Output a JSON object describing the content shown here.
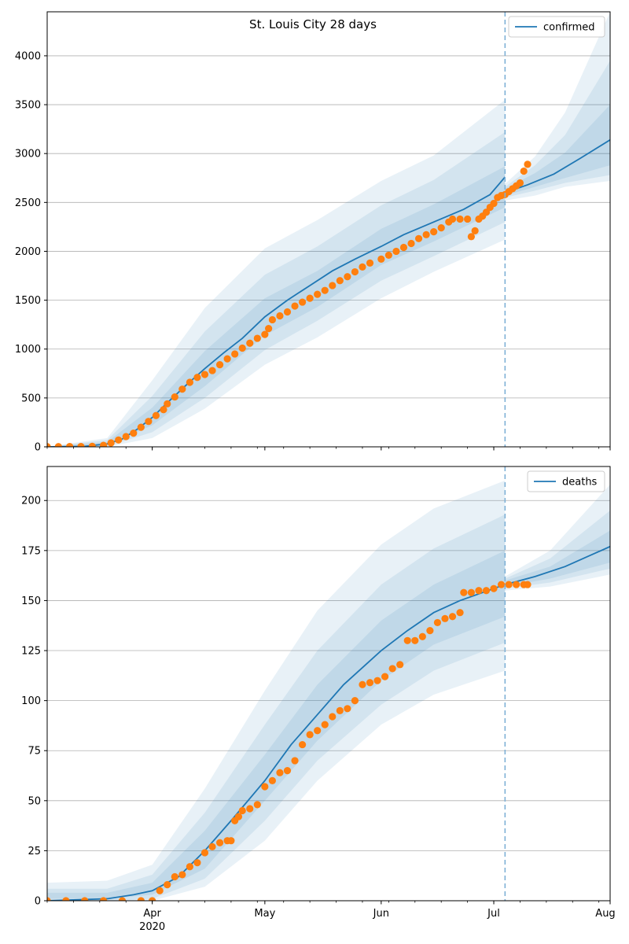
{
  "chart_data": [
    {
      "type": "line",
      "title": "St. Louis City 28 days",
      "legend": "confirmed",
      "legend_position": "top-right",
      "grid": "y",
      "ylim": [
        0,
        4450
      ],
      "yticks": [
        0,
        500,
        1000,
        1500,
        2000,
        2500,
        3000,
        3500,
        4000
      ],
      "xlim": [
        "2020-03-04",
        "2020-08-01"
      ],
      "xticks": [
        {
          "date": "2020-04-01",
          "label": "Apr"
        },
        {
          "date": "2020-05-01",
          "label": "May"
        },
        {
          "date": "2020-06-01",
          "label": "Jun"
        },
        {
          "date": "2020-07-01",
          "label": "Jul"
        },
        {
          "date": "2020-08-01",
          "label": "Aug"
        }
      ],
      "year_label": "2020",
      "forecast_start": "2020-07-04",
      "model": [
        [
          "2020-03-04",
          0
        ],
        [
          "2020-03-14",
          5
        ],
        [
          "2020-03-20",
          30
        ],
        [
          "2020-03-24",
          80
        ],
        [
          "2020-03-28",
          180
        ],
        [
          "2020-04-01",
          300
        ],
        [
          "2020-04-05",
          450
        ],
        [
          "2020-04-10",
          630
        ],
        [
          "2020-04-15",
          800
        ],
        [
          "2020-04-20",
          960
        ],
        [
          "2020-04-25",
          1110
        ],
        [
          "2020-05-01",
          1330
        ],
        [
          "2020-05-07",
          1500
        ],
        [
          "2020-05-13",
          1650
        ],
        [
          "2020-05-19",
          1800
        ],
        [
          "2020-05-25",
          1920
        ],
        [
          "2020-06-01",
          2050
        ],
        [
          "2020-06-07",
          2170
        ],
        [
          "2020-06-15",
          2300
        ],
        [
          "2020-06-23",
          2430
        ],
        [
          "2020-06-30",
          2580
        ],
        [
          "2020-07-04",
          2760
        ]
      ],
      "forecast": [
        [
          "2020-07-04",
          2600
        ],
        [
          "2020-07-10",
          2680
        ],
        [
          "2020-07-17",
          2790
        ],
        [
          "2020-07-24",
          2950
        ],
        [
          "2020-08-01",
          3140
        ]
      ],
      "observed": [
        [
          "2020-03-04",
          2
        ],
        [
          "2020-03-07",
          2
        ],
        [
          "2020-03-10",
          3
        ],
        [
          "2020-03-13",
          3
        ],
        [
          "2020-03-16",
          5
        ],
        [
          "2020-03-19",
          15
        ],
        [
          "2020-03-21",
          40
        ],
        [
          "2020-03-23",
          70
        ],
        [
          "2020-03-25",
          105
        ],
        [
          "2020-03-27",
          140
        ],
        [
          "2020-03-29",
          200
        ],
        [
          "2020-03-31",
          260
        ],
        [
          "2020-04-02",
          320
        ],
        [
          "2020-04-04",
          380
        ],
        [
          "2020-04-05",
          440
        ],
        [
          "2020-04-07",
          510
        ],
        [
          "2020-04-09",
          590
        ],
        [
          "2020-04-11",
          660
        ],
        [
          "2020-04-13",
          710
        ],
        [
          "2020-04-15",
          740
        ],
        [
          "2020-04-17",
          780
        ],
        [
          "2020-04-19",
          840
        ],
        [
          "2020-04-21",
          900
        ],
        [
          "2020-04-23",
          950
        ],
        [
          "2020-04-25",
          1010
        ],
        [
          "2020-04-27",
          1060
        ],
        [
          "2020-04-29",
          1110
        ],
        [
          "2020-05-01",
          1150
        ],
        [
          "2020-05-02",
          1210
        ],
        [
          "2020-05-03",
          1300
        ],
        [
          "2020-05-05",
          1340
        ],
        [
          "2020-05-07",
          1380
        ],
        [
          "2020-05-09",
          1440
        ],
        [
          "2020-05-11",
          1480
        ],
        [
          "2020-05-13",
          1520
        ],
        [
          "2020-05-15",
          1560
        ],
        [
          "2020-05-17",
          1600
        ],
        [
          "2020-05-19",
          1650
        ],
        [
          "2020-05-21",
          1700
        ],
        [
          "2020-05-23",
          1740
        ],
        [
          "2020-05-25",
          1790
        ],
        [
          "2020-05-27",
          1840
        ],
        [
          "2020-05-29",
          1880
        ],
        [
          "2020-06-01",
          1920
        ],
        [
          "2020-06-03",
          1960
        ],
        [
          "2020-06-05",
          2000
        ],
        [
          "2020-06-07",
          2040
        ],
        [
          "2020-06-09",
          2080
        ],
        [
          "2020-06-11",
          2130
        ],
        [
          "2020-06-13",
          2170
        ],
        [
          "2020-06-15",
          2200
        ],
        [
          "2020-06-17",
          2240
        ],
        [
          "2020-06-19",
          2300
        ],
        [
          "2020-06-20",
          2330
        ],
        [
          "2020-06-22",
          2330
        ],
        [
          "2020-06-24",
          2330
        ],
        [
          "2020-06-25",
          2150
        ],
        [
          "2020-06-26",
          2210
        ],
        [
          "2020-06-27",
          2330
        ],
        [
          "2020-06-28",
          2360
        ],
        [
          "2020-06-29",
          2400
        ],
        [
          "2020-06-30",
          2450
        ],
        [
          "2020-07-01",
          2490
        ],
        [
          "2020-07-02",
          2550
        ],
        [
          "2020-07-03",
          2570
        ],
        [
          "2020-07-04",
          2580
        ],
        [
          "2020-07-05",
          2610
        ],
        [
          "2020-07-06",
          2640
        ],
        [
          "2020-07-07",
          2670
        ],
        [
          "2020-07-08",
          2700
        ],
        [
          "2020-07-09",
          2820
        ],
        [
          "2020-07-10",
          2890
        ]
      ],
      "bands": {
        "history": [
          [
            "2020-03-04",
            [
              0,
              0
            ],
            [
              0,
              0
            ],
            [
              0,
              0
            ]
          ],
          [
            "2020-03-20",
            [
              15,
              50
            ],
            [
              5,
              70
            ],
            [
              0,
              90
            ]
          ],
          [
            "2020-04-01",
            [
              220,
              400
            ],
            [
              150,
              520
            ],
            [
              90,
              680
            ]
          ],
          [
            "2020-04-15",
            [
              620,
              980
            ],
            [
              500,
              1180
            ],
            [
              390,
              1420
            ]
          ],
          [
            "2020-05-01",
            [
              1140,
              1520
            ],
            [
              990,
              1760
            ],
            [
              840,
              2030
            ]
          ],
          [
            "2020-05-15",
            [
              1430,
              1800
            ],
            [
              1290,
              2050
            ],
            [
              1120,
              2320
            ]
          ],
          [
            "2020-06-01",
            [
              1860,
              2230
            ],
            [
              1700,
              2470
            ],
            [
              1520,
              2720
            ]
          ],
          [
            "2020-06-15",
            [
              2100,
              2480
            ],
            [
              1950,
              2730
            ],
            [
              1790,
              2980
            ]
          ],
          [
            "2020-07-04",
            [
              2450,
              2870
            ],
            [
              2300,
              3220
            ],
            [
              2120,
              3550
            ]
          ]
        ],
        "forecast": [
          [
            "2020-07-04",
            [
              2570,
              2640
            ],
            [
              2550,
              2660
            ],
            [
              2520,
              2690
            ]
          ],
          [
            "2020-07-12",
            [
              2660,
              2800
            ],
            [
              2620,
              2880
            ],
            [
              2570,
              2970
            ]
          ],
          [
            "2020-07-20",
            [
              2750,
              3010
            ],
            [
              2700,
              3190
            ],
            [
              2660,
              3420
            ]
          ],
          [
            "2020-08-01",
            [
              2880,
              3500
            ],
            [
              2780,
              3950
            ],
            [
              2720,
              4450
            ]
          ]
        ]
      }
    },
    {
      "type": "line",
      "legend": "deaths",
      "legend_position": "top-right",
      "grid": "y",
      "ylim": [
        0,
        217
      ],
      "yticks": [
        0,
        25,
        50,
        75,
        100,
        125,
        150,
        175,
        200
      ],
      "xlim": [
        "2020-03-04",
        "2020-08-01"
      ],
      "xticks": [
        {
          "date": "2020-04-01",
          "label": "Apr"
        },
        {
          "date": "2020-05-01",
          "label": "May"
        },
        {
          "date": "2020-06-01",
          "label": "Jun"
        },
        {
          "date": "2020-07-01",
          "label": "Jul"
        },
        {
          "date": "2020-08-01",
          "label": "Aug"
        }
      ],
      "year_label": "2020",
      "forecast_start": "2020-07-04",
      "model": [
        [
          "2020-03-04",
          0
        ],
        [
          "2020-03-20",
          1
        ],
        [
          "2020-03-27",
          3
        ],
        [
          "2020-04-01",
          5
        ],
        [
          "2020-04-08",
          12
        ],
        [
          "2020-04-15",
          25
        ],
        [
          "2020-04-22",
          40
        ],
        [
          "2020-05-01",
          60
        ],
        [
          "2020-05-08",
          78
        ],
        [
          "2020-05-15",
          93
        ],
        [
          "2020-05-22",
          108
        ],
        [
          "2020-06-01",
          125
        ],
        [
          "2020-06-08",
          135
        ],
        [
          "2020-06-15",
          144
        ],
        [
          "2020-06-22",
          150
        ],
        [
          "2020-07-04",
          158
        ]
      ],
      "forecast": [
        [
          "2020-07-04",
          158
        ],
        [
          "2020-07-12",
          162
        ],
        [
          "2020-07-20",
          167
        ],
        [
          "2020-07-26",
          172
        ],
        [
          "2020-08-01",
          177
        ]
      ],
      "observed": [
        [
          "2020-03-04",
          0
        ],
        [
          "2020-03-09",
          0
        ],
        [
          "2020-03-14",
          0
        ],
        [
          "2020-03-19",
          0
        ],
        [
          "2020-03-24",
          0
        ],
        [
          "2020-03-29",
          0
        ],
        [
          "2020-04-01",
          0
        ],
        [
          "2020-04-03",
          5
        ],
        [
          "2020-04-05",
          8
        ],
        [
          "2020-04-07",
          12
        ],
        [
          "2020-04-09",
          13
        ],
        [
          "2020-04-11",
          17
        ],
        [
          "2020-04-13",
          19
        ],
        [
          "2020-04-15",
          24
        ],
        [
          "2020-04-17",
          27
        ],
        [
          "2020-04-19",
          29
        ],
        [
          "2020-04-21",
          30
        ],
        [
          "2020-04-22",
          30
        ],
        [
          "2020-04-23",
          40
        ],
        [
          "2020-04-24",
          42
        ],
        [
          "2020-04-25",
          45
        ],
        [
          "2020-04-27",
          46
        ],
        [
          "2020-04-29",
          48
        ],
        [
          "2020-05-01",
          57
        ],
        [
          "2020-05-03",
          60
        ],
        [
          "2020-05-05",
          64
        ],
        [
          "2020-05-07",
          65
        ],
        [
          "2020-05-09",
          70
        ],
        [
          "2020-05-11",
          78
        ],
        [
          "2020-05-13",
          83
        ],
        [
          "2020-05-15",
          85
        ],
        [
          "2020-05-17",
          88
        ],
        [
          "2020-05-19",
          92
        ],
        [
          "2020-05-21",
          95
        ],
        [
          "2020-05-23",
          96
        ],
        [
          "2020-05-25",
          100
        ],
        [
          "2020-05-27",
          108
        ],
        [
          "2020-05-29",
          109
        ],
        [
          "2020-05-31",
          110
        ],
        [
          "2020-06-02",
          112
        ],
        [
          "2020-06-04",
          116
        ],
        [
          "2020-06-06",
          118
        ],
        [
          "2020-06-08",
          130
        ],
        [
          "2020-06-10",
          130
        ],
        [
          "2020-06-12",
          132
        ],
        [
          "2020-06-14",
          135
        ],
        [
          "2020-06-16",
          139
        ],
        [
          "2020-06-18",
          141
        ],
        [
          "2020-06-20",
          142
        ],
        [
          "2020-06-22",
          144
        ],
        [
          "2020-06-23",
          154
        ],
        [
          "2020-06-25",
          154
        ],
        [
          "2020-06-27",
          155
        ],
        [
          "2020-06-29",
          155
        ],
        [
          "2020-07-01",
          156
        ],
        [
          "2020-07-03",
          158
        ],
        [
          "2020-07-05",
          158
        ],
        [
          "2020-07-07",
          158
        ],
        [
          "2020-07-09",
          158
        ],
        [
          "2020-07-10",
          158
        ]
      ],
      "bands": {
        "history": [
          [
            "2020-03-04",
            [
              1,
              4
            ],
            [
              0,
              6
            ],
            [
              0,
              9
            ]
          ],
          [
            "2020-03-20",
            [
              1,
              4
            ],
            [
              0,
              6
            ],
            [
              0,
              10
            ]
          ],
          [
            "2020-04-01",
            [
              3,
              9
            ],
            [
              1,
              13
            ],
            [
              0,
              18
            ]
          ],
          [
            "2020-04-15",
            [
              16,
              35
            ],
            [
              11,
              44
            ],
            [
              7,
              56
            ]
          ],
          [
            "2020-05-01",
            [
              50,
              73
            ],
            [
              40,
              88
            ],
            [
              30,
              105
            ]
          ],
          [
            "2020-05-15",
            [
              80,
              108
            ],
            [
              70,
              125
            ],
            [
              60,
              145
            ]
          ],
          [
            "2020-06-01",
            [
              110,
              140
            ],
            [
              98,
              158
            ],
            [
              88,
              178
            ]
          ],
          [
            "2020-06-15",
            [
              128,
              158
            ],
            [
              115,
              176
            ],
            [
              103,
              196
            ]
          ],
          [
            "2020-07-04",
            [
              142,
              175
            ],
            [
              129,
              193
            ],
            [
              115,
              210
            ]
          ]
        ],
        "forecast": [
          [
            "2020-07-04",
            [
              157,
              160
            ],
            [
              156,
              161
            ],
            [
              155,
              162
            ]
          ],
          [
            "2020-07-16",
            [
              161,
              167
            ],
            [
              159,
              171
            ],
            [
              157,
              175
            ]
          ],
          [
            "2020-08-01",
            [
              169,
              185
            ],
            [
              166,
              195
            ],
            [
              163,
              208
            ]
          ]
        ]
      }
    }
  ],
  "colors": {
    "model_line": "#1f77b4",
    "observed": "#ff7f0e",
    "band": "#1f77b4",
    "forecast_line": "#7fb1d6",
    "grid": "#b0b0b0"
  }
}
